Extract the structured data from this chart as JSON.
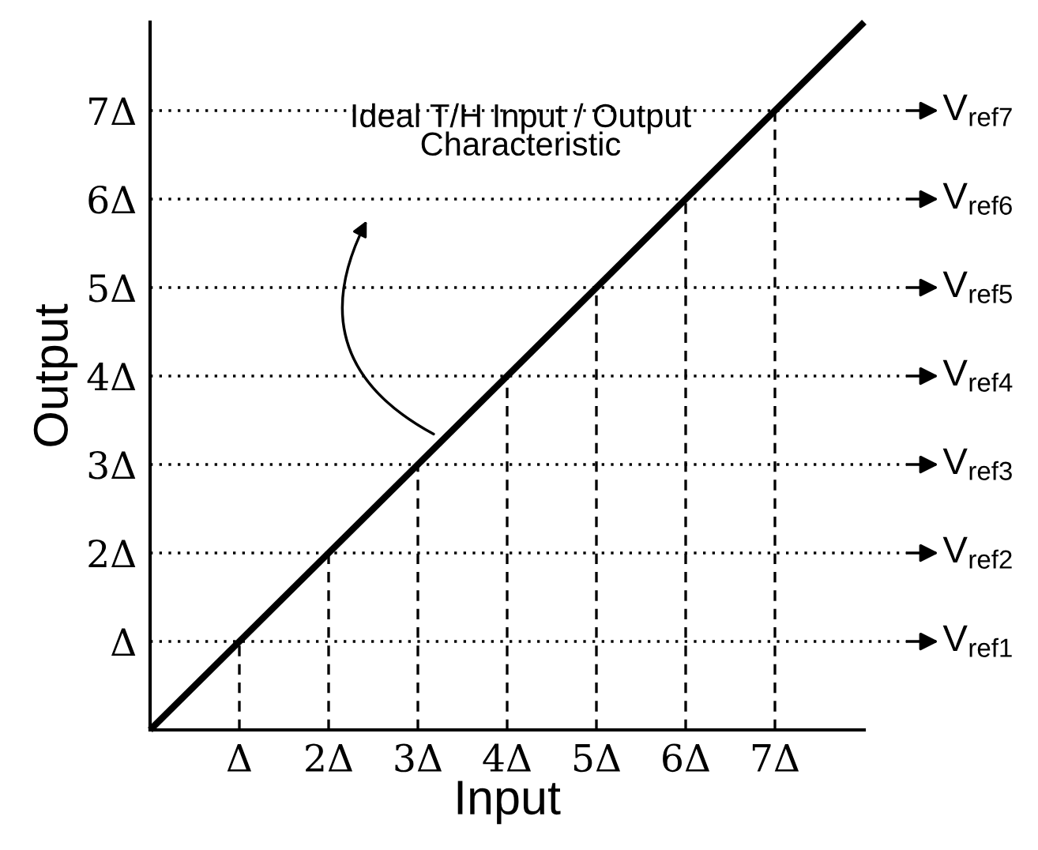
{
  "chart_data": {
    "type": "line",
    "xlabel": "Input",
    "ylabel": "Output",
    "series": [
      {
        "x": [
          0,
          8
        ],
        "values": [
          0,
          8
        ],
        "color": "#000000"
      }
    ],
    "line_style": "solid",
    "xlim": [
      0,
      8
    ],
    "ylim": [
      0,
      8
    ],
    "xticks": [
      {
        "value": 1,
        "label": "Δ"
      },
      {
        "value": 2,
        "label": "2Δ"
      },
      {
        "value": 3,
        "label": "3Δ"
      },
      {
        "value": 4,
        "label": "4Δ"
      },
      {
        "value": 5,
        "label": "5Δ"
      },
      {
        "value": 6,
        "label": "6Δ"
      },
      {
        "value": 7,
        "label": "7Δ"
      }
    ],
    "yticks": [
      {
        "value": 1,
        "label": "Δ"
      },
      {
        "value": 2,
        "label": "2Δ"
      },
      {
        "value": 3,
        "label": "3Δ"
      },
      {
        "value": 4,
        "label": "4Δ"
      },
      {
        "value": 5,
        "label": "5Δ"
      },
      {
        "value": 6,
        "label": "6Δ"
      },
      {
        "value": 7,
        "label": "7Δ"
      }
    ],
    "ref_lines": [
      {
        "axis": "y",
        "value": 1,
        "label": "V$_{ref1}$",
        "line_style": "dotted",
        "color": "#000000"
      },
      {
        "axis": "y",
        "value": 2,
        "label": "V$_{ref2}$",
        "line_style": "dotted",
        "color": "#000000"
      },
      {
        "axis": "y",
        "value": 3,
        "label": "V$_{ref3}$",
        "line_style": "dotted",
        "color": "#000000"
      },
      {
        "axis": "y",
        "value": 4,
        "label": "V$_{ref4}$",
        "line_style": "dotted",
        "color": "#000000"
      },
      {
        "axis": "y",
        "value": 5,
        "label": "V$_{ref5}$",
        "line_style": "dotted",
        "color": "#000000"
      },
      {
        "axis": "y",
        "value": 6,
        "label": "V$_{ref6}$",
        "line_style": "dotted",
        "color": "#000000"
      },
      {
        "axis": "y",
        "value": 7,
        "label": "V$_{ref7}$",
        "line_style": "dotted",
        "color": "#000000"
      },
      {
        "axis": "x",
        "value": 1,
        "line_style": "dashed",
        "color": "#000000"
      },
      {
        "axis": "x",
        "value": 2,
        "line_style": "dashed",
        "color": "#000000"
      },
      {
        "axis": "x",
        "value": 3,
        "line_style": "dashed",
        "color": "#000000"
      },
      {
        "axis": "x",
        "value": 4,
        "line_style": "dashed",
        "color": "#000000"
      },
      {
        "axis": "x",
        "value": 5,
        "line_style": "dashed",
        "color": "#000000"
      },
      {
        "axis": "x",
        "value": 6,
        "line_style": "dashed",
        "color": "#000000"
      },
      {
        "axis": "x",
        "value": 7,
        "line_style": "dashed",
        "color": "#000000"
      }
    ],
    "annotations": [
      "Ideal T/H Input / Output\nCharacteristic"
    ]
  }
}
